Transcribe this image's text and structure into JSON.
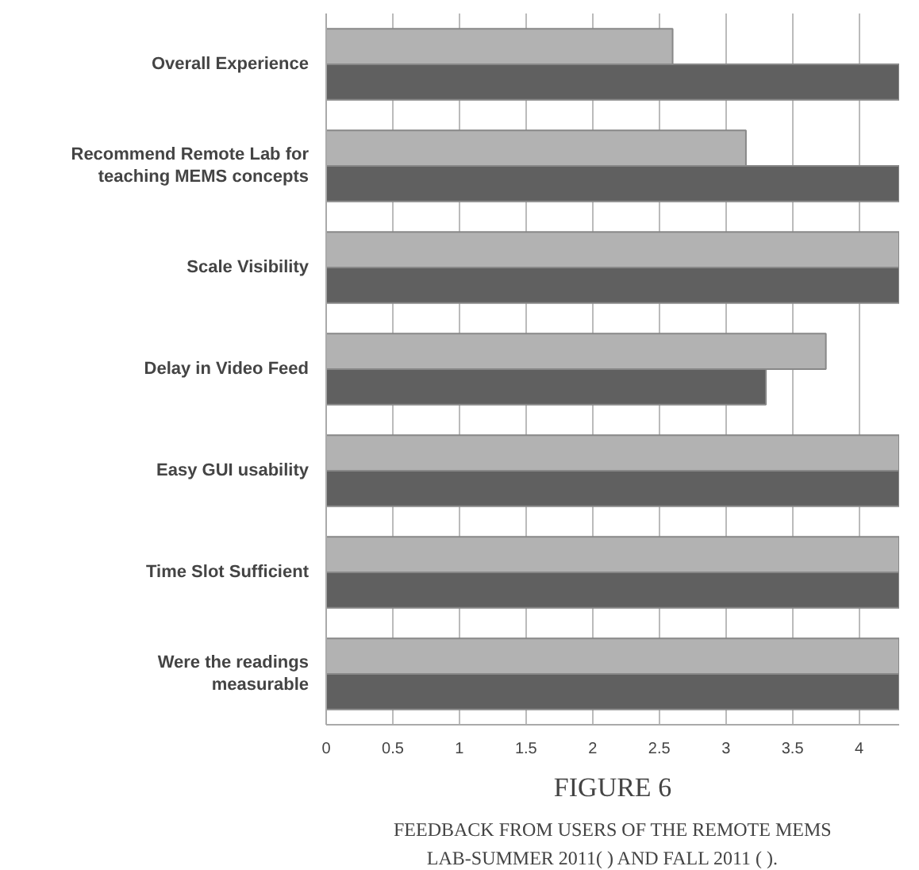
{
  "chart_data": {
    "type": "bar",
    "orientation": "horizontal",
    "title": "FIGURE 6",
    "annotations": [
      "FEEDBACK FROM USERS OF THE REMOTE MEMS",
      "LAB-SUMMER 2011(   ) AND FALL 2011 (   )."
    ],
    "categories": [
      "Overall Experience",
      "Recommend Remote Lab for\nteaching MEMS concepts",
      "Scale Visibility",
      "Delay in Video Feed",
      "Easy GUI usability",
      "Time Slot Sufficient",
      "Were the readings\nmeasurable"
    ],
    "series": [
      {
        "color": "#b2b2b2",
        "values": [
          2.6,
          3.15,
          4.3,
          3.75,
          4.3,
          4.3,
          4.3
        ]
      },
      {
        "color": "#606060",
        "values": [
          4.3,
          4.3,
          4.3,
          3.3,
          4.3,
          4.3,
          4.3
        ]
      }
    ],
    "xlim": [
      0,
      4.3
    ],
    "xticks": [
      0,
      0.5,
      1,
      1.5,
      2,
      2.5,
      3,
      3.5,
      4
    ],
    "grid": "x"
  }
}
